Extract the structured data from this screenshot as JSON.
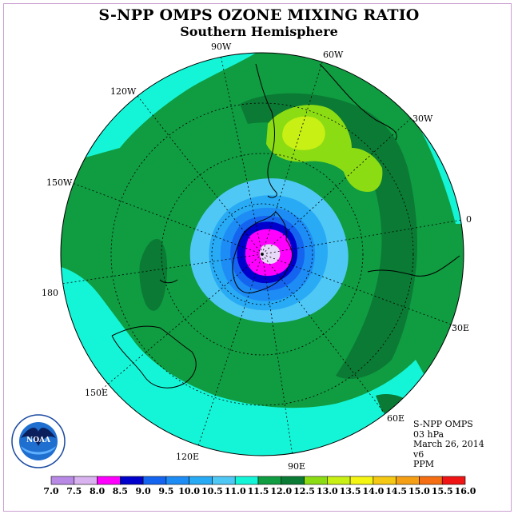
{
  "title": "S-NPP OMPS OZONE MIXING RATIO",
  "subtitle": "Southern Hemisphere",
  "longitude_labels": {
    "l90w": "90W",
    "l60w": "60W",
    "l120w": "120W",
    "l30w": "30W",
    "l150w": "150W",
    "l0": "0",
    "l180": "180",
    "l30e": "30E",
    "l150e": "150E",
    "l60e": "60E",
    "l120e": "120E",
    "l90e": "90E"
  },
  "info": {
    "instrument": "S-NPP OMPS",
    "level": "03 hPa",
    "date": "March 26, 2014",
    "version": "v6",
    "units": "PPM"
  },
  "colorbar": {
    "ticks": [
      "7.0",
      "7.5",
      "8.0",
      "8.5",
      "9.0",
      "9.5",
      "10.0",
      "10.5",
      "11.0",
      "11.5",
      "12.0",
      "12.5",
      "13.0",
      "13.5",
      "14.0",
      "14.5",
      "15.0",
      "15.5",
      "16.0"
    ],
    "colors": [
      "#b88ae6",
      "#d9b3f0",
      "#ff00ff",
      "#0000cc",
      "#1464f0",
      "#1e8cf5",
      "#28aaf5",
      "#50c8f5",
      "#14f5d7",
      "#109c41",
      "#0a7a34",
      "#8cdc14",
      "#c8f014",
      "#f5f514",
      "#f5c814",
      "#f5a014",
      "#f56e14",
      "#f01414",
      "#8c5a3c"
    ]
  },
  "logo": {
    "name": "NOAA"
  }
}
